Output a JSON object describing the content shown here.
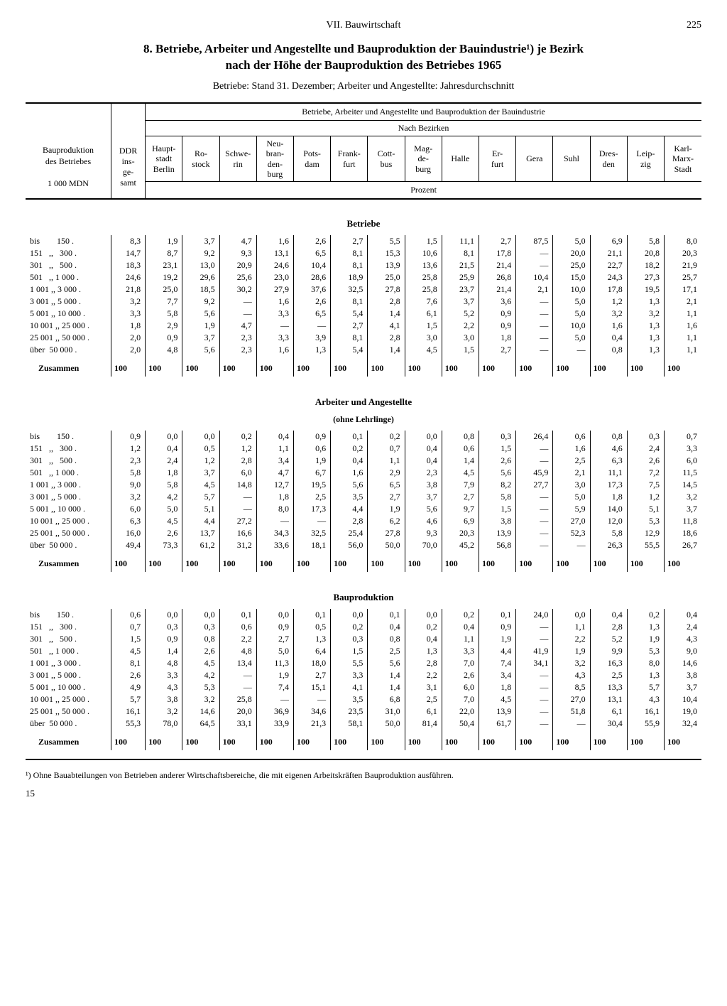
{
  "header": {
    "chapter": "VII. Bauwirtschaft",
    "page": "225"
  },
  "title_line1": "8. Betriebe, Arbeiter und Angestellte und Bauproduktion der Bauindustrie¹) je Bezirk",
  "title_line2": "nach der Höhe der Bauproduktion des Betriebes 1965",
  "subtitle": "Betriebe: Stand 31. Dezember; Arbeiter und Angestellte: Jahresdurchschnitt",
  "head": {
    "super": "Betriebe, Arbeiter und Angestellte und Bauproduktion der Bauindustrie",
    "nach": "Nach Bezirken",
    "prozent": "Prozent",
    "col_label_1": "Bauproduktion",
    "col_label_2": "des Betriebes",
    "col_label_3": "1 000 MDN",
    "ddr1": "DDR",
    "ddr2": "ins-",
    "ddr3": "ge-",
    "ddr4": "samt",
    "districts": [
      "Haupt-\nstadt\nBerlin",
      "Ro-\nstock",
      "Schwe-\nrin",
      "Neu-\nbran-\nden-\nburg",
      "Pots-\ndam",
      "Frank-\nfurt",
      "Cott-\nbus",
      "Mag-\nde-\nburg",
      "Halle",
      "Er-\nfurt",
      "Gera",
      "Suhl",
      "Dres-\nden",
      "Leip-\nzig",
      "Karl-\nMarx-\nStadt"
    ]
  },
  "row_labels": [
    "bis        150 .",
    "151   ,,   300 .",
    "301   ,,   500 .",
    "501   ,, 1 000 .",
    "1 001 ,, 3 000 .",
    "3 001 ,, 5 000 .",
    "5 001 ,, 10 000 .",
    "10 001 ,, 25 000 .",
    "25 001 ,, 50 000 .",
    "über  50 000 ."
  ],
  "sum_label": "Zusammen",
  "sections": [
    {
      "title": "Betriebe",
      "rows": [
        [
          "8,3",
          "1,9",
          "3,7",
          "4,7",
          "1,6",
          "2,6",
          "2,7",
          "5,5",
          "1,5",
          "11,1",
          "2,7",
          "87,5",
          "5,0",
          "6,9",
          "5,8",
          "8,0"
        ],
        [
          "14,7",
          "8,7",
          "9,2",
          "9,3",
          "13,1",
          "6,5",
          "8,1",
          "15,3",
          "10,6",
          "8,1",
          "17,8",
          "—",
          "20,0",
          "21,1",
          "20,8",
          "20,3"
        ],
        [
          "18,3",
          "23,1",
          "13,0",
          "20,9",
          "24,6",
          "10,4",
          "8,1",
          "13,9",
          "13,6",
          "21,5",
          "21,4",
          "—",
          "25,0",
          "22,7",
          "18,2",
          "21,9"
        ],
        [
          "24,6",
          "19,2",
          "29,6",
          "25,6",
          "23,0",
          "28,6",
          "18,9",
          "25,0",
          "25,8",
          "25,9",
          "26,8",
          "10,4",
          "15,0",
          "24,3",
          "27,3",
          "25,7"
        ],
        [
          "21,8",
          "25,0",
          "18,5",
          "30,2",
          "27,9",
          "37,6",
          "32,5",
          "27,8",
          "25,8",
          "23,7",
          "21,4",
          "2,1",
          "10,0",
          "17,8",
          "19,5",
          "17,1"
        ],
        [
          "3,2",
          "7,7",
          "9,2",
          "—",
          "1,6",
          "2,6",
          "8,1",
          "2,8",
          "7,6",
          "3,7",
          "3,6",
          "—",
          "5,0",
          "1,2",
          "1,3",
          "2,1"
        ],
        [
          "3,3",
          "5,8",
          "5,6",
          "—",
          "3,3",
          "6,5",
          "5,4",
          "1,4",
          "6,1",
          "5,2",
          "0,9",
          "—",
          "5,0",
          "3,2",
          "3,2",
          "1,1"
        ],
        [
          "1,8",
          "2,9",
          "1,9",
          "4,7",
          "—",
          "—",
          "2,7",
          "4,1",
          "1,5",
          "2,2",
          "0,9",
          "—",
          "10,0",
          "1,6",
          "1,3",
          "1,6"
        ],
        [
          "2,0",
          "0,9",
          "3,7",
          "2,3",
          "3,3",
          "3,9",
          "8,1",
          "2,8",
          "3,0",
          "3,0",
          "1,8",
          "—",
          "5,0",
          "0,4",
          "1,3",
          "1,1"
        ],
        [
          "2,0",
          "4,8",
          "5,6",
          "2,3",
          "1,6",
          "1,3",
          "5,4",
          "1,4",
          "4,5",
          "1,5",
          "2,7",
          "—",
          "—",
          "0,8",
          "1,3",
          "1,1"
        ]
      ]
    },
    {
      "title": "Arbeiter und Angestellte",
      "sub": "(ohne Lehrlinge)",
      "rows": [
        [
          "0,9",
          "0,0",
          "0,0",
          "0,2",
          "0,4",
          "0,9",
          "0,1",
          "0,2",
          "0,0",
          "0,8",
          "0,3",
          "26,4",
          "0,6",
          "0,8",
          "0,3",
          "0,7"
        ],
        [
          "1,2",
          "0,4",
          "0,5",
          "1,2",
          "1,1",
          "0,6",
          "0,2",
          "0,7",
          "0,4",
          "0,6",
          "1,5",
          "—",
          "1,6",
          "4,6",
          "2,4",
          "3,3"
        ],
        [
          "2,3",
          "2,4",
          "1,2",
          "2,8",
          "3,4",
          "1,9",
          "0,4",
          "1,1",
          "0,4",
          "1,4",
          "2,6",
          "—",
          "2,5",
          "6,3",
          "2,6",
          "6,0"
        ],
        [
          "5,8",
          "1,8",
          "3,7",
          "6,0",
          "4,7",
          "6,7",
          "1,6",
          "2,9",
          "2,3",
          "4,5",
          "5,6",
          "45,9",
          "2,1",
          "11,1",
          "7,2",
          "11,5"
        ],
        [
          "9,0",
          "5,8",
          "4,5",
          "14,8",
          "12,7",
          "19,5",
          "5,6",
          "6,5",
          "3,8",
          "7,9",
          "8,2",
          "27,7",
          "3,0",
          "17,3",
          "7,5",
          "14,5"
        ],
        [
          "3,2",
          "4,2",
          "5,7",
          "—",
          "1,8",
          "2,5",
          "3,5",
          "2,7",
          "3,7",
          "2,7",
          "5,8",
          "—",
          "5,0",
          "1,8",
          "1,2",
          "3,2"
        ],
        [
          "6,0",
          "5,0",
          "5,1",
          "—",
          "8,0",
          "17,3",
          "4,4",
          "1,9",
          "5,6",
          "9,7",
          "1,5",
          "—",
          "5,9",
          "14,0",
          "5,1",
          "3,7"
        ],
        [
          "6,3",
          "4,5",
          "4,4",
          "27,2",
          "—",
          "—",
          "2,8",
          "6,2",
          "4,6",
          "6,9",
          "3,8",
          "—",
          "27,0",
          "12,0",
          "5,3",
          "11,8"
        ],
        [
          "16,0",
          "2,6",
          "13,7",
          "16,6",
          "34,3",
          "32,5",
          "25,4",
          "27,8",
          "9,3",
          "20,3",
          "13,9",
          "—",
          "52,3",
          "5,8",
          "12,9",
          "18,6"
        ],
        [
          "49,4",
          "73,3",
          "61,2",
          "31,2",
          "33,6",
          "18,1",
          "56,0",
          "50,0",
          "70,0",
          "45,2",
          "56,8",
          "—",
          "—",
          "26,3",
          "55,5",
          "26,7"
        ]
      ]
    },
    {
      "title": "Bauproduktion",
      "rows": [
        [
          "0,6",
          "0,0",
          "0,0",
          "0,1",
          "0,0",
          "0,1",
          "0,0",
          "0,1",
          "0,0",
          "0,2",
          "0,1",
          "24,0",
          "0,0",
          "0,4",
          "0,2",
          "0,4"
        ],
        [
          "0,7",
          "0,3",
          "0,3",
          "0,6",
          "0,9",
          "0,5",
          "0,2",
          "0,4",
          "0,2",
          "0,4",
          "0,9",
          "—",
          "1,1",
          "2,8",
          "1,3",
          "2,4"
        ],
        [
          "1,5",
          "0,9",
          "0,8",
          "2,2",
          "2,7",
          "1,3",
          "0,3",
          "0,8",
          "0,4",
          "1,1",
          "1,9",
          "—",
          "2,2",
          "5,2",
          "1,9",
          "4,3"
        ],
        [
          "4,5",
          "1,4",
          "2,6",
          "4,8",
          "5,0",
          "6,4",
          "1,5",
          "2,5",
          "1,3",
          "3,3",
          "4,4",
          "41,9",
          "1,9",
          "9,9",
          "5,3",
          "9,0"
        ],
        [
          "8,1",
          "4,8",
          "4,5",
          "13,4",
          "11,3",
          "18,0",
          "5,5",
          "5,6",
          "2,8",
          "7,0",
          "7,4",
          "34,1",
          "3,2",
          "16,3",
          "8,0",
          "14,6"
        ],
        [
          "2,6",
          "3,3",
          "4,2",
          "—",
          "1,9",
          "2,7",
          "3,3",
          "1,4",
          "2,2",
          "2,6",
          "3,4",
          "—",
          "4,3",
          "2,5",
          "1,3",
          "3,8"
        ],
        [
          "4,9",
          "4,3",
          "5,3",
          "—",
          "7,4",
          "15,1",
          "4,1",
          "1,4",
          "3,1",
          "6,0",
          "1,8",
          "—",
          "8,5",
          "13,3",
          "5,7",
          "3,7"
        ],
        [
          "5,7",
          "3,8",
          "3,2",
          "25,8",
          "—",
          "—",
          "3,5",
          "6,8",
          "2,5",
          "7,0",
          "4,5",
          "—",
          "27,0",
          "13,1",
          "4,3",
          "10,4"
        ],
        [
          "16,1",
          "3,2",
          "14,6",
          "20,0",
          "36,9",
          "34,6",
          "23,5",
          "31,0",
          "6,1",
          "22,0",
          "13,9",
          "—",
          "51,8",
          "6,1",
          "16,1",
          "19,0"
        ],
        [
          "55,3",
          "78,0",
          "64,5",
          "33,1",
          "33,9",
          "21,3",
          "58,1",
          "50,0",
          "81,4",
          "50,4",
          "61,7",
          "—",
          "—",
          "30,4",
          "55,9",
          "32,4"
        ]
      ]
    }
  ],
  "sum_vals": [
    "100",
    "100",
    "100",
    "100",
    "100",
    "100",
    "100",
    "100",
    "100",
    "100",
    "100",
    "100",
    "100",
    "100",
    "100",
    "100"
  ],
  "footnote": "¹) Ohne Bauabteilungen von Betrieben anderer Wirtschaftsbereiche, die mit eigenen Arbeitskräften Bauproduktion ausführen.",
  "bottom_num": "15"
}
